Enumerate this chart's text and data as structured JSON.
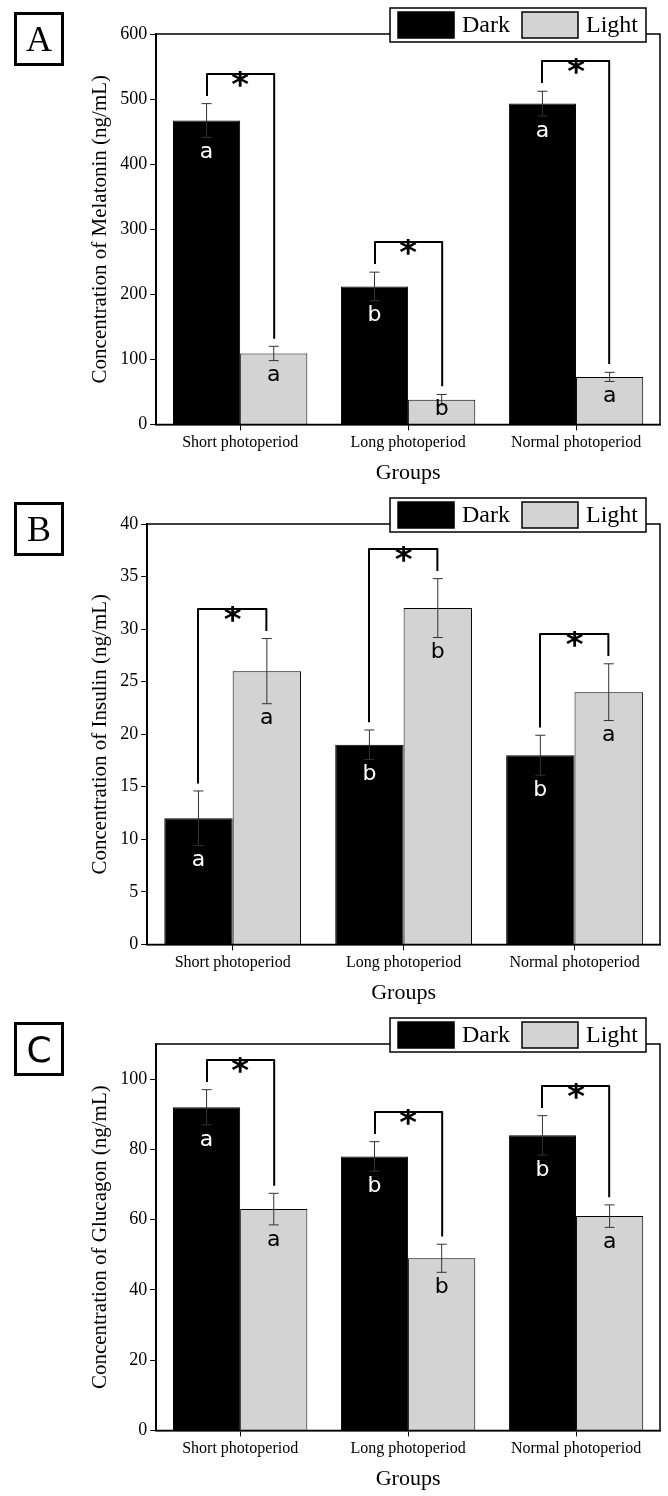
{
  "chart_data": [
    {
      "type": "bar",
      "title": "A",
      "xlabel": "Groups",
      "ylabel": "Concentration of Melatonin (ng/mL)",
      "categories": [
        "Short photoperiod",
        "Long photoperiod",
        "Normal photoperiod"
      ],
      "series": [
        {
          "name": "Dark",
          "color": "#000000",
          "values": [
            467,
            212,
            493
          ],
          "errors": [
            26,
            22,
            19
          ],
          "value_labels": [
            "a",
            "b",
            "a"
          ]
        },
        {
          "name": "Light",
          "color": "#d3d3d3",
          "values": [
            109,
            38,
            73
          ],
          "errors": [
            11,
            8,
            7
          ],
          "value_labels": [
            "a",
            "b",
            "a"
          ]
        }
      ],
      "ylim": [
        0,
        600
      ],
      "yticks": [
        0,
        100,
        200,
        300,
        400,
        500,
        600
      ],
      "legend": "top right",
      "annotations": [
        "*",
        "*",
        "*"
      ]
    },
    {
      "type": "bar",
      "title": "B",
      "xlabel": "Groups",
      "ylabel": "Concentration of Insulin (ng/mL)",
      "categories": [
        "Short photoperiod",
        "Long photoperiod",
        "Normal photoperiod"
      ],
      "series": [
        {
          "name": "Dark",
          "color": "#000000",
          "values": [
            12,
            19,
            18
          ],
          "errors": [
            2.6,
            1.4,
            1.9
          ],
          "value_labels": [
            "a",
            "b",
            "b"
          ]
        },
        {
          "name": "Light",
          "color": "#d3d3d3",
          "values": [
            26,
            32,
            24
          ],
          "errors": [
            3.1,
            2.8,
            2.7
          ],
          "value_labels": [
            "a",
            "b",
            "a"
          ]
        }
      ],
      "ylim": [
        0,
        40
      ],
      "yticks": [
        0,
        5,
        10,
        15,
        20,
        25,
        30,
        35,
        40
      ],
      "legend": "top right",
      "annotations": [
        "*",
        "*",
        "*"
      ]
    },
    {
      "type": "bar",
      "title": "C",
      "xlabel": "Groups",
      "ylabel": "Concentration of Glucagon (ng/mL)",
      "categories": [
        "Short photoperiod",
        "Long photoperiod",
        "Normal photoperiod"
      ],
      "series": [
        {
          "name": "Dark",
          "color": "#000000",
          "values": [
            92,
            78,
            84
          ],
          "errors": [
            5,
            4.2,
            5.6
          ],
          "value_labels": [
            "a",
            "b",
            "b"
          ]
        },
        {
          "name": "Light",
          "color": "#d3d3d3",
          "values": [
            63,
            49,
            61
          ],
          "errors": [
            4.5,
            4,
            3.2
          ],
          "value_labels": [
            "a",
            "b",
            "a"
          ]
        }
      ],
      "ylim": [
        0,
        110
      ],
      "yticks": [
        0,
        20,
        40,
        60,
        80,
        100
      ],
      "legend": "top right",
      "annotations": [
        "*",
        "*",
        "*"
      ]
    }
  ]
}
